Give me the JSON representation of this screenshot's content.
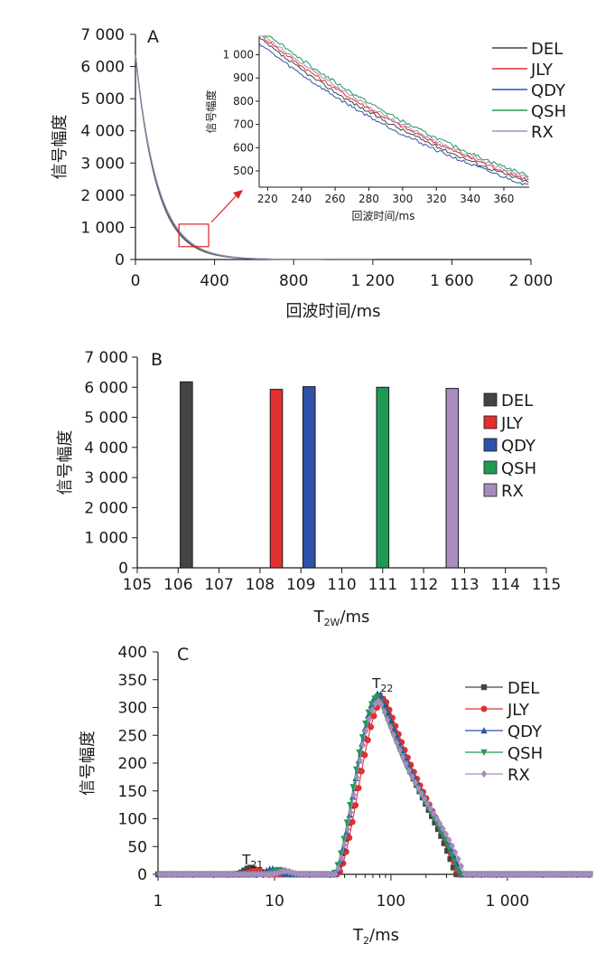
{
  "colors": {
    "DEL": "#444444",
    "JLY": "#e03030",
    "QDY": "#2f52a8",
    "QSH": "#1f9a55",
    "RX": "#a88bbf"
  },
  "chart_data": [
    {
      "id": "A",
      "panel_label": "A",
      "type": "line",
      "title": "",
      "xlabel": "回波时间/ms",
      "ylabel": "信号幅度",
      "xlim": [
        0,
        2000
      ],
      "ylim": [
        0,
        7000
      ],
      "x_ticks": [
        0,
        400,
        800,
        1200,
        1600,
        2000
      ],
      "x_tick_labels": [
        "0",
        "400",
        "800",
        "1 200",
        "1 600",
        "2 000"
      ],
      "y_ticks": [
        0,
        1000,
        2000,
        3000,
        4000,
        5000,
        6000,
        7000
      ],
      "y_tick_labels": [
        "0",
        "1 000",
        "2 000",
        "3 000",
        "4 000",
        "5 000",
        "6 000",
        "7 000"
      ],
      "series": [
        {
          "name": "DEL",
          "a0": 6400,
          "t2": 106.2
        },
        {
          "name": "JLY",
          "a0": 6350,
          "t2": 108.4
        },
        {
          "name": "QDY",
          "a0": 6380,
          "t2": 109.2
        },
        {
          "name": "QSH",
          "a0": 6380,
          "t2": 111.0
        },
        {
          "name": "RX",
          "a0": 6360,
          "t2": 112.7
        }
      ],
      "legend": [
        "DEL",
        "JLY",
        "QDY",
        "QSH",
        "RX"
      ],
      "highlight_box_x": [
        220,
        370
      ],
      "highlight_box_y": [
        400,
        1100
      ],
      "inset": {
        "xlabel": "回波时间/ms",
        "ylabel": "信号幅度",
        "xlim": [
          215,
          375
        ],
        "ylim": [
          430,
          1080
        ],
        "x_ticks": [
          220,
          240,
          260,
          280,
          300,
          320,
          340,
          360
        ],
        "x_tick_labels": [
          "220",
          "240",
          "260",
          "280",
          "300",
          "320",
          "340",
          "360"
        ],
        "y_ticks": [
          500,
          600,
          700,
          800,
          900,
          1000
        ],
        "y_tick_labels": [
          "500",
          "600",
          "700",
          "800",
          "900",
          "1 000"
        ]
      }
    },
    {
      "id": "B",
      "panel_label": "B",
      "type": "bar",
      "title": "",
      "xlabel": "T2W/ms",
      "xlabel_main": "T",
      "xlabel_sub": "2W",
      "xlabel_rest": "/ms",
      "ylabel": "信号幅度",
      "xlim": [
        105,
        115
      ],
      "ylim": [
        0,
        7000
      ],
      "x_ticks": [
        105,
        106,
        107,
        108,
        109,
        110,
        111,
        112,
        113,
        114,
        115
      ],
      "x_tick_labels": [
        "105",
        "106",
        "107",
        "108",
        "109",
        "110",
        "111",
        "112",
        "113",
        "114",
        "115"
      ],
      "y_ticks": [
        0,
        1000,
        2000,
        3000,
        4000,
        5000,
        6000,
        7000
      ],
      "y_tick_labels": [
        "0",
        "1 000",
        "2 000",
        "3 000",
        "4 000",
        "5 000",
        "6 000",
        "7 000"
      ],
      "bar_width": 0.3,
      "bars": [
        {
          "name": "DEL",
          "x": 106.2,
          "value": 6180
        },
        {
          "name": "JLY",
          "x": 108.4,
          "value": 5930
        },
        {
          "name": "QDY",
          "x": 109.2,
          "value": 6020
        },
        {
          "name": "QSH",
          "x": 111.0,
          "value": 6000
        },
        {
          "name": "RX",
          "x": 112.7,
          "value": 5960
        }
      ],
      "legend": [
        "DEL",
        "JLY",
        "QDY",
        "QSH",
        "RX"
      ]
    },
    {
      "id": "C",
      "panel_label": "C",
      "type": "line",
      "title": "",
      "xlabel": "T2/ms",
      "xlabel_main": "T",
      "xlabel_sub": "2",
      "xlabel_rest": "/ms",
      "ylabel": "信号幅度",
      "xscale": "log",
      "xlim": [
        1,
        5000
      ],
      "ylim": [
        0,
        400
      ],
      "x_ticks": [
        1,
        10,
        100,
        1000
      ],
      "x_tick_labels": [
        "1",
        "10",
        "100",
        "1 000"
      ],
      "y_ticks": [
        0,
        50,
        100,
        150,
        200,
        250,
        300,
        350,
        400
      ],
      "y_tick_labels": [
        "0",
        "50",
        "100",
        "150",
        "200",
        "250",
        "300",
        "350",
        "400"
      ],
      "series": [
        {
          "name": "DEL",
          "marker": "square",
          "peak_x": 82,
          "peak": 322,
          "left_x": 33,
          "right_x": 360,
          "skew": 0.5,
          "small_peak_x": 6.2,
          "small_peak": 12
        },
        {
          "name": "JLY",
          "marker": "circle",
          "peak_x": 88,
          "peak": 316,
          "left_x": 35,
          "right_x": 380,
          "skew": 0.45,
          "small_peak_x": 7.0,
          "small_peak": 8
        },
        {
          "name": "QDY",
          "marker": "triangle-up",
          "peak_x": 80,
          "peak": 326,
          "left_x": 33,
          "right_x": 400,
          "skew": 0.55,
          "small_peak_x": 9.5,
          "small_peak": 10
        },
        {
          "name": "QSH",
          "marker": "triangle-down",
          "peak_x": 78,
          "peak": 320,
          "left_x": 32,
          "right_x": 390,
          "skew": 0.55,
          "small_peak_x": 11.0,
          "small_peak": 8
        },
        {
          "name": "RX",
          "marker": "diamond",
          "peak_x": 80,
          "peak": 312,
          "left_x": 33,
          "right_x": 430,
          "skew": 0.6,
          "small_peak_x": 12.5,
          "small_peak": 6
        }
      ],
      "annotations": [
        {
          "text_main": "T",
          "text_sub": "22",
          "x": 85,
          "y": 335
        },
        {
          "text_main": "T",
          "text_sub": "21",
          "x": 6.5,
          "y": 18
        }
      ],
      "legend": [
        "DEL",
        "JLY",
        "QDY",
        "QSH",
        "RX"
      ]
    }
  ]
}
